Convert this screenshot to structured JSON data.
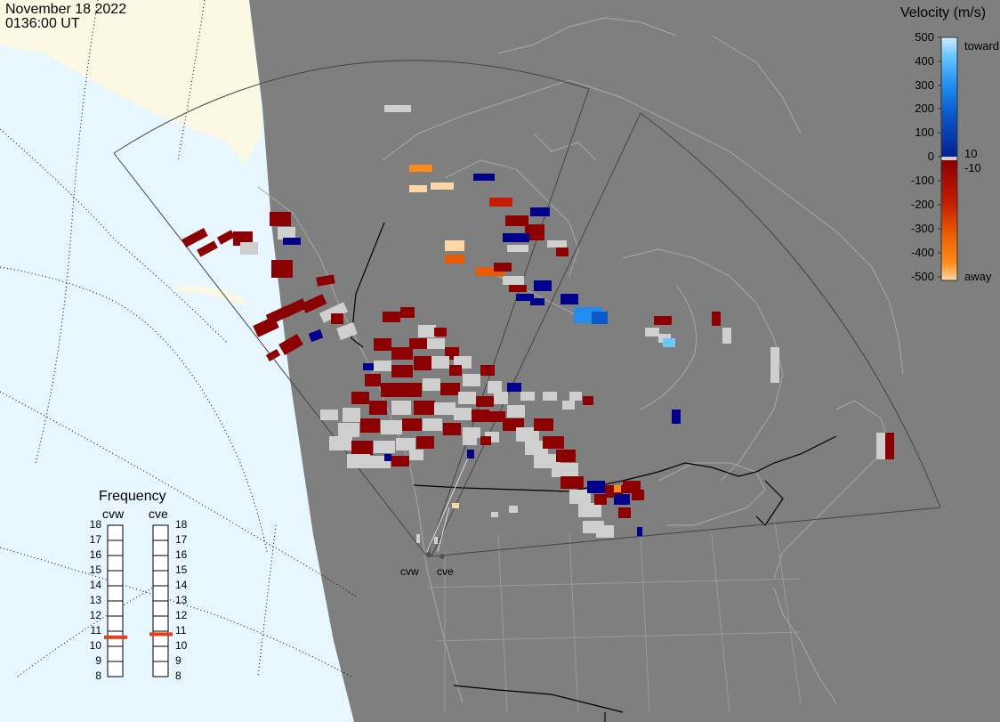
{
  "header": {
    "date": "November 18 2022",
    "time": "0136:00 UT"
  },
  "colorbar": {
    "title": "Velocity (m/s)",
    "tick_labels": [
      "500",
      "400",
      "300",
      "200",
      "100",
      "0",
      "-100",
      "-200",
      "-300",
      "-400",
      "-500"
    ],
    "inner_labels": [
      "10",
      "-10"
    ],
    "toward_label": "toward",
    "away_label": "away"
  },
  "frequency_panel": {
    "title": "Frequency",
    "radars": [
      "cvw",
      "cve"
    ],
    "scale": [
      "18",
      "17",
      "16",
      "15",
      "14",
      "13",
      "12",
      "11",
      "10",
      "9",
      "8"
    ],
    "current_mhz": [
      10.6,
      10.8
    ],
    "marker_color": "#e0401a"
  },
  "sites": [
    "cvw",
    "cve"
  ],
  "colors": {
    "ocean": "#e8f6ff",
    "land_day": "#fbf8e4",
    "land_night": "#7f7f7f",
    "ground_scatter": "#cfcfcf",
    "slow_away": "#8b0000",
    "slow_toward": "#00008b",
    "toward_scale": [
      "#cfeeff",
      "#6cc7ff",
      "#1f8ef0",
      "#0b58c8",
      "#04208f"
    ],
    "away_scale": [
      "#8b0000",
      "#c21d00",
      "#e85a00",
      "#ff8c1a",
      "#ffd6a8"
    ]
  }
}
